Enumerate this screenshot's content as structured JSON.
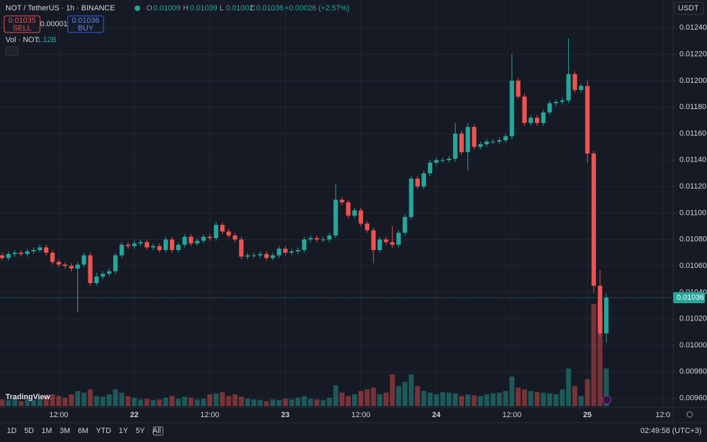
{
  "header": {
    "symbol": "NOT / TetherUS · 1h · BINANCE",
    "o": "O",
    "h": "H",
    "l": "L",
    "c": "C",
    "change": "+0.00026 (+2.57%)",
    "sell": "SELL",
    "sell_price": "0.01035",
    "spread": "0.00001",
    "buy": "BUY",
    "vol_label": "Vol · NOT",
    "vol_value": "1.12B",
    "currency": "USDT",
    "brand": "TradingView"
  },
  "toolbar": {
    "ranges": [
      "1D",
      "5D",
      "1M",
      "3M",
      "6M",
      "YTD",
      "1Y",
      "5Y",
      "All"
    ],
    "clock": "02:49:58 (UTC+3)"
  },
  "chart_data": {
    "type": "candlestick",
    "up_color": "#26a69a",
    "down_color": "#ef5350",
    "grid": true,
    "open": [
      0.01065,
      0.01068,
      0.01066,
      0.01069,
      0.0107,
      0.01069,
      0.01071,
      0.01072,
      0.01074,
      0.0107,
      0.01063,
      0.01061,
      0.0106,
      0.01058,
      0.01061,
      0.01068,
      0.01047,
      0.01052,
      0.01054,
      0.01056,
      0.01068,
      0.01076,
      0.01075,
      0.01077,
      0.01078,
      0.01074,
      0.01075,
      0.01072,
      0.0108,
      0.01072,
      0.01076,
      0.01082,
      0.01077,
      0.01079,
      0.01082,
      0.01081,
      0.01091,
      0.01086,
      0.01083,
      0.0108,
      0.01067,
      0.01068,
      0.01068,
      0.01069,
      0.01066,
      0.01068,
      0.01073,
      0.0107,
      0.01071,
      0.01072,
      0.0108,
      0.01081,
      0.0108,
      0.0108,
      0.01083,
      0.0111,
      0.01108,
      0.01098,
      0.01102,
      0.01092,
      0.01087,
      0.01072,
      0.0108,
      0.01078,
      0.01076,
      0.01085,
      0.01097,
      0.01126,
      0.0112,
      0.0113,
      0.01138,
      0.0114,
      0.0114,
      0.01141,
      0.0116,
      0.01146,
      0.01165,
      0.0115,
      0.01152,
      0.01154,
      0.01154,
      0.01155,
      0.01158,
      0.012,
      0.01188,
      0.01168,
      0.01172,
      0.01168,
      0.01176,
      0.01183,
      0.01184,
      0.01185,
      0.01205,
      0.01193,
      0.01196,
      0.01145,
      0.01045,
      0.01009
    ],
    "high": [
      0.0107,
      0.0107,
      0.01071,
      0.01072,
      0.01072,
      0.01073,
      0.01074,
      0.01076,
      0.01076,
      0.01072,
      0.01065,
      0.01063,
      0.01062,
      0.01063,
      0.0107,
      0.0107,
      0.01055,
      0.01056,
      0.01058,
      0.0107,
      0.01078,
      0.01078,
      0.01079,
      0.0108,
      0.0108,
      0.01077,
      0.01077,
      0.01082,
      0.01082,
      0.01078,
      0.01084,
      0.01084,
      0.01081,
      0.01084,
      0.01084,
      0.01093,
      0.01093,
      0.01088,
      0.01085,
      0.01082,
      0.0107,
      0.0107,
      0.01071,
      0.01071,
      0.0107,
      0.01075,
      0.01075,
      0.01073,
      0.01074,
      0.01082,
      0.01083,
      0.01083,
      0.01082,
      0.01085,
      0.01122,
      0.01112,
      0.0111,
      0.01104,
      0.01104,
      0.01094,
      0.01089,
      0.01082,
      0.01082,
      0.0109,
      0.01087,
      0.01099,
      0.01128,
      0.01128,
      0.01132,
      0.0114,
      0.01142,
      0.01142,
      0.01143,
      0.01168,
      0.01162,
      0.01168,
      0.01167,
      0.01154,
      0.01156,
      0.01156,
      0.01157,
      0.0116,
      0.0122,
      0.01202,
      0.0119,
      0.01174,
      0.01174,
      0.01178,
      0.01185,
      0.01186,
      0.01187,
      0.01232,
      0.01207,
      0.01198,
      0.012,
      0.01147,
      0.01057,
      0.01039
    ],
    "low": [
      0.01063,
      0.01064,
      0.01064,
      0.01067,
      0.01067,
      0.01067,
      0.01069,
      0.0107,
      0.01068,
      0.01061,
      0.01059,
      0.01058,
      0.01056,
      0.01025,
      0.01059,
      0.01045,
      0.01045,
      0.0105,
      0.01052,
      0.01054,
      0.01066,
      0.01073,
      0.01073,
      0.01075,
      0.01072,
      0.01072,
      0.0107,
      0.0107,
      0.0107,
      0.0107,
      0.01074,
      0.01075,
      0.01075,
      0.01077,
      0.01079,
      0.01079,
      0.01084,
      0.01081,
      0.01078,
      0.01065,
      0.01065,
      0.01066,
      0.01066,
      0.01064,
      0.01064,
      0.01066,
      0.01068,
      0.01068,
      0.01069,
      0.0107,
      0.01078,
      0.01078,
      0.01078,
      0.01078,
      0.01081,
      0.01106,
      0.01096,
      0.01096,
      0.0109,
      0.01085,
      0.01062,
      0.0107,
      0.01076,
      0.01074,
      0.01074,
      0.01083,
      0.01095,
      0.01118,
      0.01118,
      0.01128,
      0.01136,
      0.01138,
      0.01138,
      0.01139,
      0.01144,
      0.01132,
      0.01148,
      0.01148,
      0.0115,
      0.01152,
      0.01152,
      0.01153,
      0.01156,
      0.01186,
      0.01166,
      0.01166,
      0.01166,
      0.01166,
      0.01174,
      0.01181,
      0.01182,
      0.01183,
      0.01191,
      0.01191,
      0.01138,
      0.0104,
      0.01006,
      0.01002
    ],
    "close": [
      0.01068,
      0.01066,
      0.01069,
      0.0107,
      0.01069,
      0.01071,
      0.01072,
      0.01074,
      0.0107,
      0.01063,
      0.01061,
      0.0106,
      0.01058,
      0.01061,
      0.01068,
      0.01047,
      0.01052,
      0.01054,
      0.01056,
      0.01068,
      0.01076,
      0.01075,
      0.01077,
      0.01078,
      0.01074,
      0.01075,
      0.01072,
      0.0108,
      0.01072,
      0.01076,
      0.01082,
      0.01077,
      0.01079,
      0.01082,
      0.01081,
      0.01091,
      0.01086,
      0.01083,
      0.0108,
      0.01067,
      0.01068,
      0.01068,
      0.01069,
      0.01066,
      0.01068,
      0.01073,
      0.0107,
      0.01071,
      0.01072,
      0.0108,
      0.01081,
      0.0108,
      0.0108,
      0.01083,
      0.0111,
      0.01108,
      0.01098,
      0.01102,
      0.01092,
      0.01087,
      0.01072,
      0.0108,
      0.01078,
      0.01076,
      0.01085,
      0.01097,
      0.01126,
      0.0112,
      0.0113,
      0.01138,
      0.0114,
      0.0114,
      0.01141,
      0.0116,
      0.01146,
      0.01165,
      0.0115,
      0.01152,
      0.01154,
      0.01154,
      0.01155,
      0.01158,
      0.012,
      0.01188,
      0.01168,
      0.01172,
      0.01168,
      0.01176,
      0.01183,
      0.01184,
      0.01185,
      0.01205,
      0.01193,
      0.01196,
      0.01145,
      0.01045,
      0.01009,
      0.01036
    ],
    "volume": [
      0.25,
      0.2,
      0.18,
      0.22,
      0.15,
      0.2,
      0.18,
      0.22,
      0.3,
      0.35,
      0.3,
      0.25,
      0.35,
      0.45,
      0.4,
      0.5,
      0.3,
      0.28,
      0.35,
      0.5,
      0.4,
      0.3,
      0.25,
      0.2,
      0.22,
      0.18,
      0.2,
      0.25,
      0.3,
      0.22,
      0.28,
      0.25,
      0.2,
      0.22,
      0.35,
      0.38,
      0.42,
      0.3,
      0.35,
      0.28,
      0.22,
      0.2,
      0.18,
      0.15,
      0.2,
      0.18,
      0.22,
      0.2,
      0.25,
      0.3,
      0.22,
      0.2,
      0.18,
      0.25,
      0.62,
      0.4,
      0.3,
      0.35,
      0.45,
      0.5,
      0.55,
      0.35,
      0.4,
      0.95,
      0.6,
      0.72,
      0.95,
      0.6,
      0.45,
      0.4,
      0.35,
      0.42,
      0.4,
      0.38,
      0.3,
      0.35,
      0.32,
      0.3,
      0.35,
      0.38,
      0.4,
      0.45,
      0.88,
      0.55,
      0.5,
      0.45,
      0.42,
      0.4,
      0.38,
      0.35,
      0.5,
      1.12,
      0.6,
      0.3,
      0.8,
      3.05,
      3.0,
      1.12
    ],
    "ylim": [
      0.00953,
      0.01261
    ],
    "yticks": [
      {
        "value": 0.0096,
        "label": "0.00960"
      },
      {
        "value": 0.0098,
        "label": "0.00980"
      },
      {
        "value": 0.01,
        "label": "0.01000"
      },
      {
        "value": 0.0102,
        "label": "0.01020"
      },
      {
        "value": 0.0104,
        "label": "0.01040"
      },
      {
        "value": 0.0106,
        "label": "0.01060"
      },
      {
        "value": 0.0108,
        "label": "0.01080"
      },
      {
        "value": 0.011,
        "label": "0.01100"
      },
      {
        "value": 0.0112,
        "label": "0.01120"
      },
      {
        "value": 0.0114,
        "label": "0.01140"
      },
      {
        "value": 0.0116,
        "label": "0.01160"
      },
      {
        "value": 0.0118,
        "label": "0.01180"
      },
      {
        "value": 0.012,
        "label": "0.01200"
      },
      {
        "value": 0.0122,
        "label": "0.01220"
      },
      {
        "value": 0.0124,
        "label": "0.01240"
      }
    ],
    "xticks": [
      {
        "value": 10,
        "label": "12:00"
      },
      {
        "value": 22,
        "label": "22"
      },
      {
        "value": 34,
        "label": "12:00"
      },
      {
        "value": 46,
        "label": "23"
      },
      {
        "value": 58,
        "label": "12:00"
      },
      {
        "value": 70,
        "label": "24"
      },
      {
        "value": 82,
        "label": "12:00"
      },
      {
        "value": 94,
        "label": "25"
      },
      {
        "value": 106,
        "label": "12:0"
      }
    ]
  }
}
